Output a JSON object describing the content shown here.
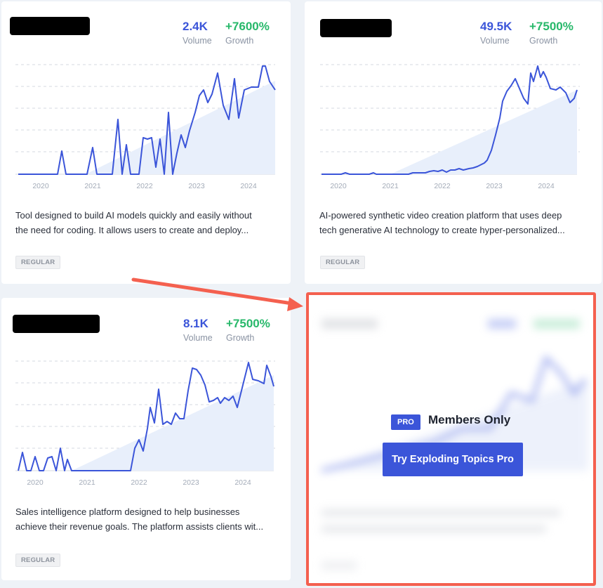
{
  "cards": [
    {
      "volume": "2.4K",
      "volume_label": "Volume",
      "growth": "+7600%",
      "growth_label": "Growth",
      "years": [
        "2020",
        "2021",
        "2022",
        "2023",
        "2024"
      ],
      "description_line1": "Tool designed to build AI models quickly and easily without",
      "description_line2": "the need for coding. It allows users to create and deploy...",
      "badge": "REGULAR"
    },
    {
      "volume": "49.5K",
      "volume_label": "Volume",
      "growth": "+7500%",
      "growth_label": "Growth",
      "years": [
        "2020",
        "2021",
        "2022",
        "2023",
        "2024"
      ],
      "description_line1": "AI-powered synthetic video creation platform that uses deep",
      "description_line2": "tech generative AI technology to create hyper-personalized...",
      "badge": "REGULAR"
    },
    {
      "volume": "8.1K",
      "volume_label": "Volume",
      "growth": "+7500%",
      "growth_label": "Growth",
      "years": [
        "2020",
        "2021",
        "2022",
        "2023",
        "2024"
      ],
      "description_line1": "Sales intelligence platform designed to help businesses",
      "description_line2": "achieve their revenue goals. The platform assists clients wit...",
      "badge": "REGULAR"
    }
  ],
  "locked_card": {
    "pro_badge": "PRO",
    "title": "Members Only",
    "button_label": "Try Exploding Topics Pro"
  },
  "colors": {
    "accent": "#3b55d9",
    "growth": "#27b86a",
    "highlight_border": "#f4604f",
    "line": "#3b55d9",
    "area": "#e8effb"
  }
}
